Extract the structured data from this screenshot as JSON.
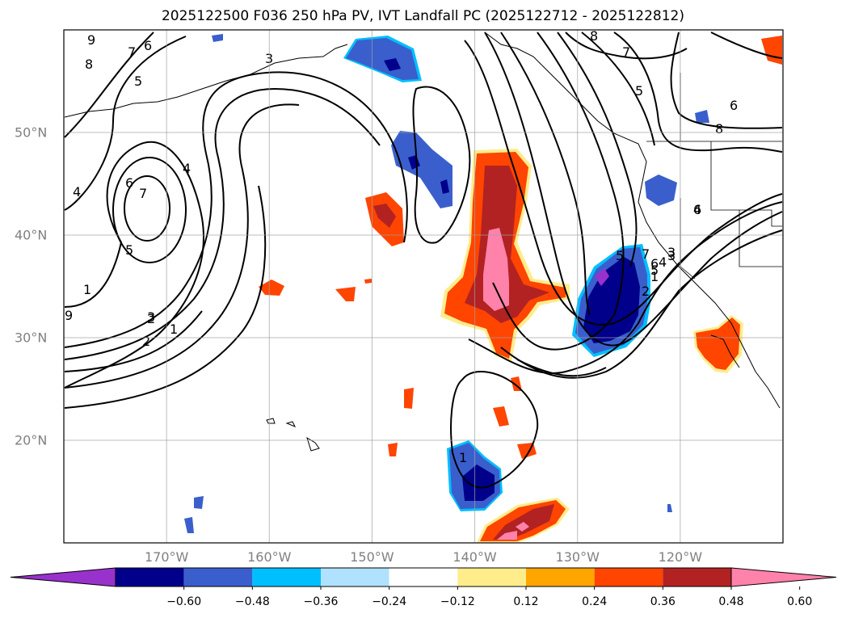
{
  "title": "2025122500 F036 250 hPa PV, IVT Landfall PC (2025122712 - 2025122812)",
  "map": {
    "lon_range": [
      -180,
      -110
    ],
    "lat_range": [
      10,
      60
    ],
    "lon_ticks": [
      {
        "value": -170,
        "label": "170°W"
      },
      {
        "value": -160,
        "label": "160°W"
      },
      {
        "value": -150,
        "label": "150°W"
      },
      {
        "value": -140,
        "label": "140°W"
      },
      {
        "value": -130,
        "label": "130°W"
      },
      {
        "value": -120,
        "label": "120°W"
      }
    ],
    "lat_ticks": [
      {
        "value": 20,
        "label": "20°N"
      },
      {
        "value": 30,
        "label": "30°N"
      },
      {
        "value": 40,
        "label": "40°N"
      },
      {
        "value": 50,
        "label": "50°N"
      }
    ],
    "grid": true,
    "contour_labels": [
      "9",
      "8",
      "7",
      "6",
      "5",
      "4",
      "3",
      "2",
      "1",
      "6",
      "7",
      "5",
      "4",
      "3",
      "2",
      "1",
      "9",
      "8",
      "7",
      "5",
      "6",
      "8",
      "7",
      "6",
      "5",
      "4",
      "3",
      "2",
      "1",
      "1",
      "6",
      "5",
      "4",
      "3"
    ]
  },
  "colorbar": {
    "colors": [
      "#9932cc",
      "#00008b",
      "#3a5fcd",
      "#00bfff",
      "#b0e2ff",
      "#ffffff",
      "#ffec8b",
      "#ffa500",
      "#ff4500",
      "#b22222",
      "#ff82ab"
    ],
    "ticks": [
      "−0.60",
      "−0.48",
      "−0.36",
      "−0.24",
      "−0.12",
      "0.12",
      "0.24",
      "0.36",
      "0.48",
      "0.60"
    ],
    "extend": "both"
  }
}
